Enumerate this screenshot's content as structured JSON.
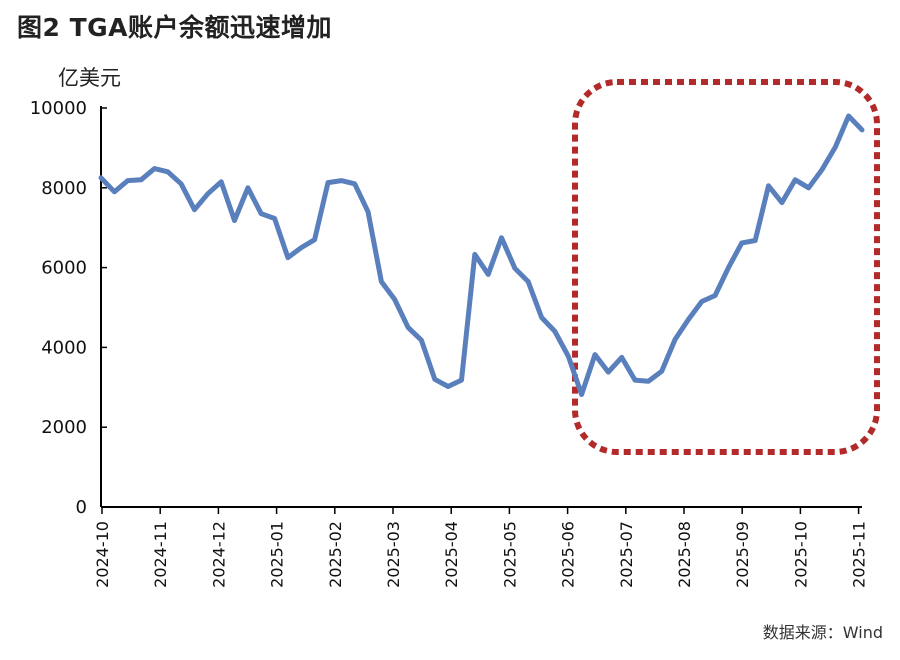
{
  "header": {
    "title": "图2  TGA账户余额迅速增加",
    "unit": "亿美元",
    "source": "数据来源：Wind"
  },
  "chart_data": {
    "type": "line",
    "title": "图2  TGA账户余额迅速增加",
    "ylabel": "亿美元",
    "xlabel": "",
    "ylim": [
      0,
      10000
    ],
    "yticks": [
      0,
      2000,
      4000,
      6000,
      8000,
      10000
    ],
    "x_ticks": [
      "2024-10",
      "2024-11",
      "2024-12",
      "2025-01",
      "2025-02",
      "2025-03",
      "2025-04",
      "2025-05",
      "2025-06",
      "2025-07",
      "2025-08",
      "2025-09",
      "2025-10",
      "2025-11"
    ],
    "grid": false,
    "line_color": "#5a7fbd",
    "highlight_color": "#b22a2a",
    "highlight_range": [
      "2025-06",
      "2025-11"
    ],
    "series": [
      {
        "values": [
          8250,
          7900,
          8180,
          8200,
          8480,
          8400,
          8100,
          7450,
          7850,
          8150,
          7180,
          8000,
          7350,
          7230,
          6250,
          6500,
          6700,
          8130,
          8180,
          8100,
          7400,
          5650,
          5200,
          4500,
          4180,
          3200,
          3020,
          3180,
          6330,
          5830,
          6750,
          5980,
          5650,
          4750,
          4400,
          3780,
          2820,
          3820,
          3380,
          3750,
          3180,
          3150,
          3400,
          4200,
          4700,
          5150,
          5300,
          6000,
          6620,
          6680,
          8050,
          7630,
          8200,
          8000,
          8450,
          9020,
          9800,
          9450
        ]
      }
    ]
  }
}
